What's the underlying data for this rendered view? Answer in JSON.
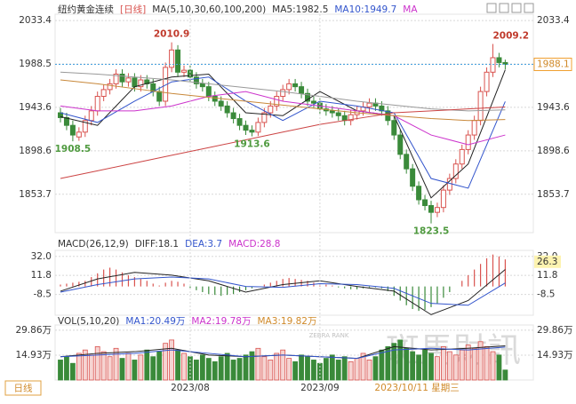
{
  "timeframe": "日线",
  "watermark": {
    "text": "斑馬財訊",
    "sub": "ZEBRA RANK"
  },
  "chart_data": [
    {
      "type": "candlestick",
      "title": "纽约黄金连续",
      "period": "[日线]",
      "legend": [
        {
          "text": "MA(5,10,30,60,100,200)",
          "color": "#333333"
        },
        {
          "text": "MA5:1982.5",
          "color": "#333333"
        },
        {
          "text": "MA10:1949.7",
          "color": "#3355cc"
        },
        {
          "text": "MA",
          "color": "#cc33cc"
        }
      ],
      "ylim": [
        1814,
        2040
      ],
      "yticks": [
        2033.4,
        1988.5,
        1943.6,
        1898.6,
        1853.7
      ],
      "grid": true,
      "up_color": "#d9534f",
      "down_color": "#3a8a3a",
      "open": [
        1938,
        1933,
        1925,
        1913,
        1918,
        1930,
        1940,
        1955,
        1962,
        1968,
        1978,
        1970,
        1974,
        1965,
        1972,
        1968,
        1960,
        1950,
        1985,
        2003,
        1980,
        1982,
        1975,
        1968,
        1965,
        1955,
        1950,
        1945,
        1938,
        1932,
        1925,
        1920,
        1918,
        1928,
        1938,
        1945,
        1955,
        1962,
        1968,
        1965,
        1958,
        1950,
        1948,
        1942,
        1940,
        1938,
        1935,
        1930,
        1936,
        1940,
        1944,
        1948,
        1945,
        1940,
        1930,
        1915,
        1895,
        1880,
        1862,
        1848,
        1842,
        1835,
        1840,
        1858,
        1870,
        1885,
        1900,
        1915,
        1930,
        1960,
        1980,
        1995,
        1990
      ],
      "high": [
        1943,
        1938,
        1930,
        1923,
        1935,
        1945,
        1960,
        1967,
        1973,
        1983,
        1983,
        1979,
        1979,
        1977,
        1977,
        1973,
        1965,
        1990,
        2010.9,
        2008,
        1987,
        1987,
        1980,
        1973,
        1970,
        1960,
        1955,
        1950,
        1943,
        1937,
        1930,
        1925,
        1933,
        1943,
        1950,
        1960,
        1967,
        1973,
        1973,
        1970,
        1963,
        1955,
        1953,
        1947,
        1945,
        1943,
        1940,
        1941,
        1945,
        1949,
        1953,
        1953,
        1950,
        1945,
        1935,
        1920,
        1900,
        1885,
        1867,
        1853,
        1847,
        1845,
        1863,
        1875,
        1890,
        1905,
        1920,
        1935,
        1965,
        1985,
        2009.2,
        2000,
        1993
      ],
      "low": [
        1928,
        1920,
        1908.5,
        1909,
        1913,
        1925,
        1935,
        1950,
        1957,
        1963,
        1965,
        1965,
        1960,
        1960,
        1963,
        1955,
        1945,
        1945,
        1980,
        1975,
        1975,
        1970,
        1963,
        1960,
        1950,
        1945,
        1940,
        1933,
        1927,
        1920,
        1915,
        1913.6,
        1914,
        1923,
        1933,
        1940,
        1950,
        1957,
        1960,
        1953,
        1945,
        1943,
        1937,
        1935,
        1933,
        1930,
        1925,
        1925,
        1931,
        1935,
        1939,
        1940,
        1935,
        1925,
        1910,
        1890,
        1875,
        1857,
        1843,
        1837,
        1823.5,
        1830,
        1835,
        1853,
        1865,
        1880,
        1895,
        1910,
        1925,
        1955,
        1975,
        1985,
        1983
      ],
      "close": [
        1933,
        1925,
        1915,
        1918,
        1930,
        1940,
        1955,
        1962,
        1968,
        1978,
        1970,
        1974,
        1965,
        1972,
        1968,
        1960,
        1950,
        1985,
        2003,
        1980,
        1982,
        1975,
        1968,
        1965,
        1955,
        1950,
        1945,
        1938,
        1932,
        1925,
        1920,
        1918,
        1928,
        1938,
        1945,
        1955,
        1962,
        1968,
        1965,
        1958,
        1950,
        1948,
        1942,
        1940,
        1938,
        1935,
        1930,
        1936,
        1940,
        1944,
        1948,
        1945,
        1940,
        1930,
        1915,
        1895,
        1880,
        1862,
        1848,
        1842,
        1835,
        1840,
        1858,
        1870,
        1885,
        1900,
        1915,
        1930,
        1960,
        1980,
        1995,
        1990,
        1988.1
      ],
      "series": [
        {
          "color": "#222222",
          "x": [
            0,
            6,
            12,
            18,
            24,
            30,
            36,
            42,
            48,
            54,
            60,
            66,
            72
          ],
          "values": [
            1934,
            1925,
            1965,
            1975,
            1978,
            1938,
            1935,
            1960,
            1940,
            1935,
            1850,
            1885,
            1982.5
          ]
        },
        {
          "color": "#3355cc",
          "x": [
            0,
            6,
            12,
            18,
            24,
            30,
            36,
            42,
            48,
            54,
            60,
            66,
            72
          ],
          "values": [
            1938,
            1928,
            1950,
            1970,
            1975,
            1950,
            1930,
            1950,
            1945,
            1938,
            1870,
            1860,
            1949.7
          ]
        },
        {
          "color": "#cc33cc",
          "x": [
            0,
            6,
            12,
            18,
            24,
            30,
            36,
            42,
            48,
            54,
            60,
            66,
            72
          ],
          "values": [
            1945,
            1940,
            1940,
            1945,
            1955,
            1960,
            1950,
            1945,
            1940,
            1935,
            1915,
            1905,
            1915
          ]
        },
        {
          "color": "#c8883a",
          "x": [
            0,
            6,
            12,
            18,
            24,
            30,
            36,
            42,
            48,
            54,
            60,
            66,
            72
          ],
          "values": [
            1972,
            1968,
            1963,
            1958,
            1954,
            1950,
            1946,
            1942,
            1938,
            1935,
            1932,
            1930,
            1931
          ]
        },
        {
          "color": "#999999",
          "x": [
            0,
            6,
            12,
            18,
            24,
            30,
            36,
            42,
            48,
            54,
            60,
            66,
            72
          ],
          "values": [
            1980,
            1978,
            1975,
            1972,
            1968,
            1964,
            1960,
            1955,
            1950,
            1946,
            1942,
            1940,
            1941
          ]
        },
        {
          "color": "#cc4444",
          "x": [
            0,
            6,
            12,
            18,
            24,
            30,
            36,
            42,
            48,
            54,
            60,
            66,
            72
          ],
          "values": [
            1870,
            1878,
            1886,
            1894,
            1902,
            1910,
            1918,
            1926,
            1932,
            1938,
            1940,
            1942,
            1944
          ]
        }
      ],
      "annotations": [
        {
          "x": 2,
          "value": 1908.5,
          "color": "#4f9a3f",
          "position": "below"
        },
        {
          "x": 18,
          "value": 2010.9,
          "color": "#c0392b",
          "position": "above"
        },
        {
          "x": 31,
          "value": 1913.6,
          "color": "#4f9a3f",
          "position": "below"
        },
        {
          "x": 60,
          "value": 1823.5,
          "color": "#4f9a3f",
          "position": "below"
        },
        {
          "x": 70,
          "value": 2009.2,
          "color": "#c0392b",
          "position": "above"
        }
      ],
      "last": 1988.1
    },
    {
      "type": "macd",
      "title": "MACD(26,12,9)",
      "legend": [
        {
          "text": "DIFF:18.1",
          "color": "#333333"
        },
        {
          "text": "DEA:3.7",
          "color": "#3355cc"
        },
        {
          "text": "MACD:28.8",
          "color": "#cc33cc"
        }
      ],
      "ylim": [
        -30.6,
        38.4
      ],
      "yticks": [
        {
          "value": 32,
          "label": "32.0"
        },
        11.8,
        -8.5
      ],
      "grid": true,
      "up_color": "#d9534f",
      "down_color": "#3a8a3a",
      "values": [
        2,
        3,
        4,
        5,
        6,
        10,
        14,
        18,
        20,
        18,
        15,
        12,
        10,
        8,
        6,
        3,
        1,
        4,
        6,
        5,
        3,
        -2,
        -4,
        -6,
        -8,
        -9,
        -10,
        -9,
        -8,
        -6,
        -4,
        -2,
        0,
        2,
        4,
        6,
        8,
        9,
        8,
        7,
        6,
        4,
        3,
        2,
        1,
        -1,
        -2,
        -3,
        -3,
        -2,
        -1,
        -1,
        -2,
        -5,
        -10,
        -15,
        -20,
        -24,
        -26,
        -25,
        -22,
        -18,
        -12,
        -6,
        0,
        6,
        12,
        18,
        24,
        30,
        34,
        32,
        28.8
      ],
      "series": [
        {
          "color": "#222222",
          "x": [
            0,
            6,
            12,
            18,
            24,
            30,
            36,
            42,
            48,
            54,
            60,
            66,
            72
          ],
          "values": [
            -5,
            8,
            15,
            12,
            6,
            -6,
            2,
            6,
            0,
            -5,
            -30,
            -15,
            18.1
          ]
        },
        {
          "color": "#3355cc",
          "x": [
            0,
            6,
            12,
            18,
            24,
            30,
            36,
            42,
            48,
            54,
            60,
            66,
            72
          ],
          "values": [
            -6,
            2,
            8,
            10,
            8,
            0,
            -1,
            3,
            2,
            -2,
            -18,
            -20,
            3.7
          ]
        }
      ],
      "marker": 26.3
    },
    {
      "type": "volume",
      "title": "VOL(5,10,20)",
      "legend": [
        {
          "text": "MA1:20.49万",
          "color": "#3355cc"
        },
        {
          "text": "MA2:19.78万",
          "color": "#cc33cc"
        },
        {
          "text": "MA3:19.82万",
          "color": "#d08a2a"
        }
      ],
      "ylim": [
        0,
        33
      ],
      "yticks": [
        {
          "value": 29.86,
          "label": "29.86万"
        },
        {
          "value": 14.93,
          "label": "14.93万"
        }
      ],
      "grid": true,
      "up_color": "#d9534f",
      "down_color": "#3a8a3a",
      "values": [
        12,
        14,
        10,
        16,
        18,
        15,
        20,
        17,
        14,
        19,
        13,
        16,
        12,
        15,
        18,
        14,
        17,
        22,
        24,
        18,
        16,
        14,
        12,
        15,
        13,
        11,
        14,
        16,
        12,
        13,
        15,
        17,
        19,
        14,
        12,
        16,
        18,
        13,
        11,
        15,
        14,
        12,
        10,
        13,
        15,
        12,
        14,
        11,
        13,
        16,
        12,
        14,
        18,
        20,
        22,
        24,
        19,
        17,
        15,
        18,
        16,
        14,
        20,
        17,
        15,
        18,
        21,
        19,
        23,
        20,
        17,
        15,
        6
      ],
      "series": [
        {
          "color": "#222222",
          "x": [
            0,
            6,
            12,
            18,
            24,
            30,
            36,
            42,
            48,
            54,
            60,
            66,
            72
          ],
          "values": [
            14,
            16,
            17,
            19,
            15,
            14,
            15,
            14,
            13,
            20,
            18,
            19,
            20.49
          ]
        },
        {
          "color": "#3355cc",
          "x": [
            0,
            6,
            12,
            18,
            24,
            30,
            36,
            42,
            48,
            54,
            60,
            66,
            72
          ],
          "values": [
            14,
            15,
            16,
            18,
            16,
            14,
            15,
            14,
            13,
            18,
            19,
            18,
            19.78
          ]
        }
      ],
      "xticks": [
        {
          "value": 21,
          "label": "2023/08"
        },
        {
          "value": 42,
          "label": "2023/09"
        }
      ],
      "cursor": {
        "x": 52,
        "label": "2023/10/11 星期三"
      }
    }
  ]
}
